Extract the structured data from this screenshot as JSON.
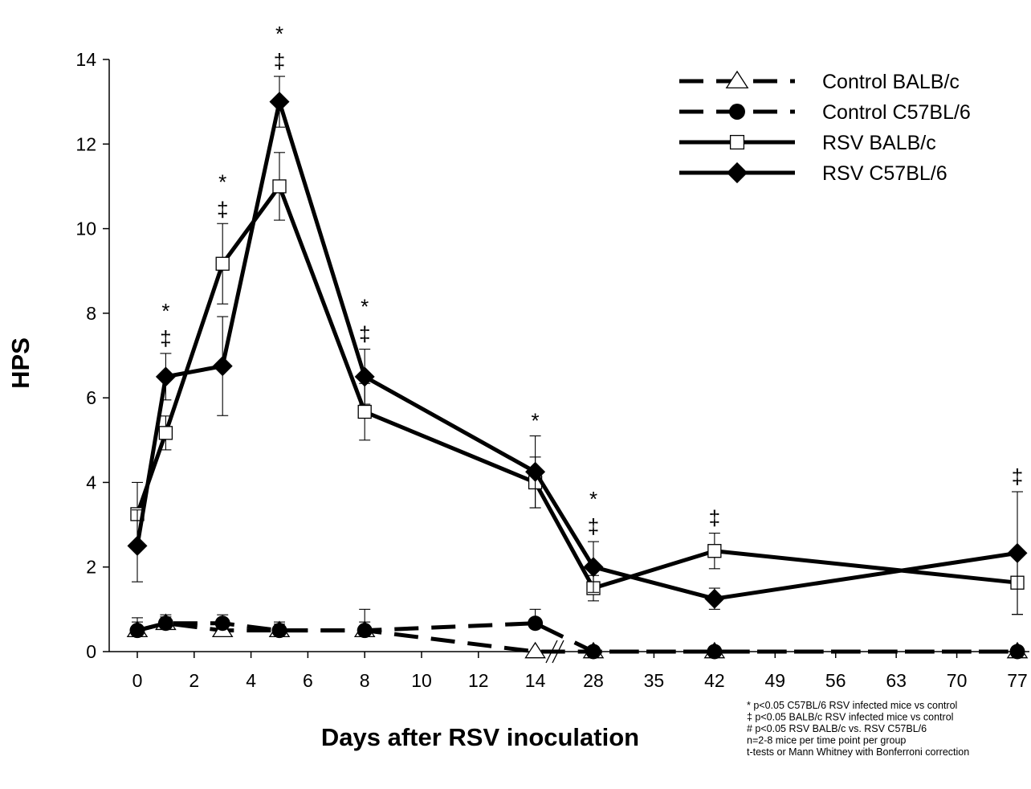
{
  "chart_data": {
    "type": "line",
    "title": "",
    "xlabel": "Days after RSV inoculation",
    "ylabel": "HPS",
    "ylim": [
      0,
      14
    ],
    "yticks": [
      "0",
      "2",
      "4",
      "6",
      "8",
      "10",
      "12",
      "14"
    ],
    "x_segments": [
      {
        "range": [
          0,
          16
        ],
        "ticks": [
          0,
          2,
          4,
          6,
          8,
          10,
          12,
          14
        ],
        "labels": [
          "0",
          "2",
          "4",
          "6",
          "8",
          "10",
          "12",
          "14"
        ]
      },
      {
        "range": [
          24,
          77
        ],
        "ticks": [
          28,
          35,
          42,
          49,
          56,
          63,
          70,
          77
        ],
        "labels": [
          "28",
          "35",
          "42",
          "49",
          "56",
          "63",
          "70",
          "77"
        ]
      }
    ],
    "axis_break": "between 14 and 28",
    "grid": false,
    "legend_position": "top-right",
    "series": [
      {
        "name": "Control BALB/c",
        "line": "dashed",
        "marker": "open-triangle",
        "color": "#000000",
        "points": [
          {
            "x": 0,
            "y": 0.5,
            "err": 0.2
          },
          {
            "x": 1,
            "y": 0.67,
            "err": 0.15
          },
          {
            "x": 3,
            "y": 0.5,
            "err": 0.2
          },
          {
            "x": 5,
            "y": 0.5,
            "err": 0.15
          },
          {
            "x": 8,
            "y": 0.5,
            "err": 0.2
          },
          {
            "x": 14,
            "y": 0,
            "err": 0
          },
          {
            "x": 28,
            "y": 0,
            "err": 0
          },
          {
            "x": 42,
            "y": 0,
            "err": 0
          },
          {
            "x": 77,
            "y": 0,
            "err": 0
          }
        ]
      },
      {
        "name": "Control C57BL/6",
        "line": "dashed",
        "marker": "filled-circle",
        "color": "#000000",
        "points": [
          {
            "x": 0,
            "y": 0.5,
            "err": 0.3
          },
          {
            "x": 1,
            "y": 0.67,
            "err": 0.2
          },
          {
            "x": 3,
            "y": 0.67,
            "err": 0.2
          },
          {
            "x": 5,
            "y": 0.5,
            "err": 0.2
          },
          {
            "x": 8,
            "y": 0.5,
            "err": 0.5
          },
          {
            "x": 14,
            "y": 0.67,
            "err": 0.33
          },
          {
            "x": 28,
            "y": 0,
            "err": 0
          },
          {
            "x": 42,
            "y": 0,
            "err": 0
          },
          {
            "x": 77,
            "y": 0,
            "err": 0
          }
        ]
      },
      {
        "name": "RSV BALB/c",
        "line": "solid",
        "marker": "open-square",
        "color": "#000000",
        "points": [
          {
            "x": 0,
            "y": 3.25,
            "err": 0.75
          },
          {
            "x": 1,
            "y": 5.17,
            "err": 0.4
          },
          {
            "x": 3,
            "y": 9.17,
            "err": 0.95
          },
          {
            "x": 5,
            "y": 11.0,
            "err": 0.8
          },
          {
            "x": 8,
            "y": 5.67,
            "err": 0.67
          },
          {
            "x": 14,
            "y": 4.0,
            "err": 0.6
          },
          {
            "x": 28,
            "y": 1.5,
            "err": 0.3
          },
          {
            "x": 42,
            "y": 2.38,
            "err": 0.42
          },
          {
            "x": 77,
            "y": 1.63,
            "err": 0.75
          }
        ]
      },
      {
        "name": "RSV C57BL/6",
        "line": "solid",
        "marker": "filled-diamond",
        "color": "#000000",
        "points": [
          {
            "x": 0,
            "y": 2.5,
            "err": 0.85
          },
          {
            "x": 1,
            "y": 6.5,
            "err": 0.55
          },
          {
            "x": 3,
            "y": 6.75,
            "err": 1.17
          },
          {
            "x": 5,
            "y": 13.0,
            "err": 0.6
          },
          {
            "x": 8,
            "y": 6.5,
            "err": 0.65
          },
          {
            "x": 14,
            "y": 4.25,
            "err": 0.85
          },
          {
            "x": 28,
            "y": 2.0,
            "err": 0.6
          },
          {
            "x": 42,
            "y": 1.25,
            "err": 0.25
          },
          {
            "x": 77,
            "y": 2.33,
            "err": 1.45
          }
        ]
      }
    ],
    "significance_markers": [
      {
        "x": 1,
        "y": 7.05,
        "symbols": [
          "*",
          "‡"
        ]
      },
      {
        "x": 3,
        "y": 10.1,
        "symbols": [
          "*",
          "‡"
        ]
      },
      {
        "x": 5,
        "y": 13.6,
        "symbols": [
          "*",
          "‡"
        ]
      },
      {
        "x": 8,
        "y": 7.15,
        "symbols": [
          "*",
          "‡"
        ]
      },
      {
        "x": 14,
        "y": 5.1,
        "symbols": [
          "*"
        ]
      },
      {
        "x": 28,
        "y": 2.6,
        "symbols": [
          "*",
          "‡"
        ]
      },
      {
        "x": 42,
        "y": 2.8,
        "symbols": [
          "‡"
        ]
      },
      {
        "x": 77,
        "y": 3.78,
        "symbols": [
          "‡"
        ]
      }
    ],
    "footnotes": [
      "* p<0.05  C57BL/6 RSV infected mice vs control",
      "‡ p<0.05 BALB/c RSV infected mice vs control",
      "# p<0.05 RSV BALB/c vs. RSV C57BL/6",
      "n=2-8 mice per time point per group",
      "t-tests or Mann Whitney with Bonferroni correction"
    ]
  }
}
